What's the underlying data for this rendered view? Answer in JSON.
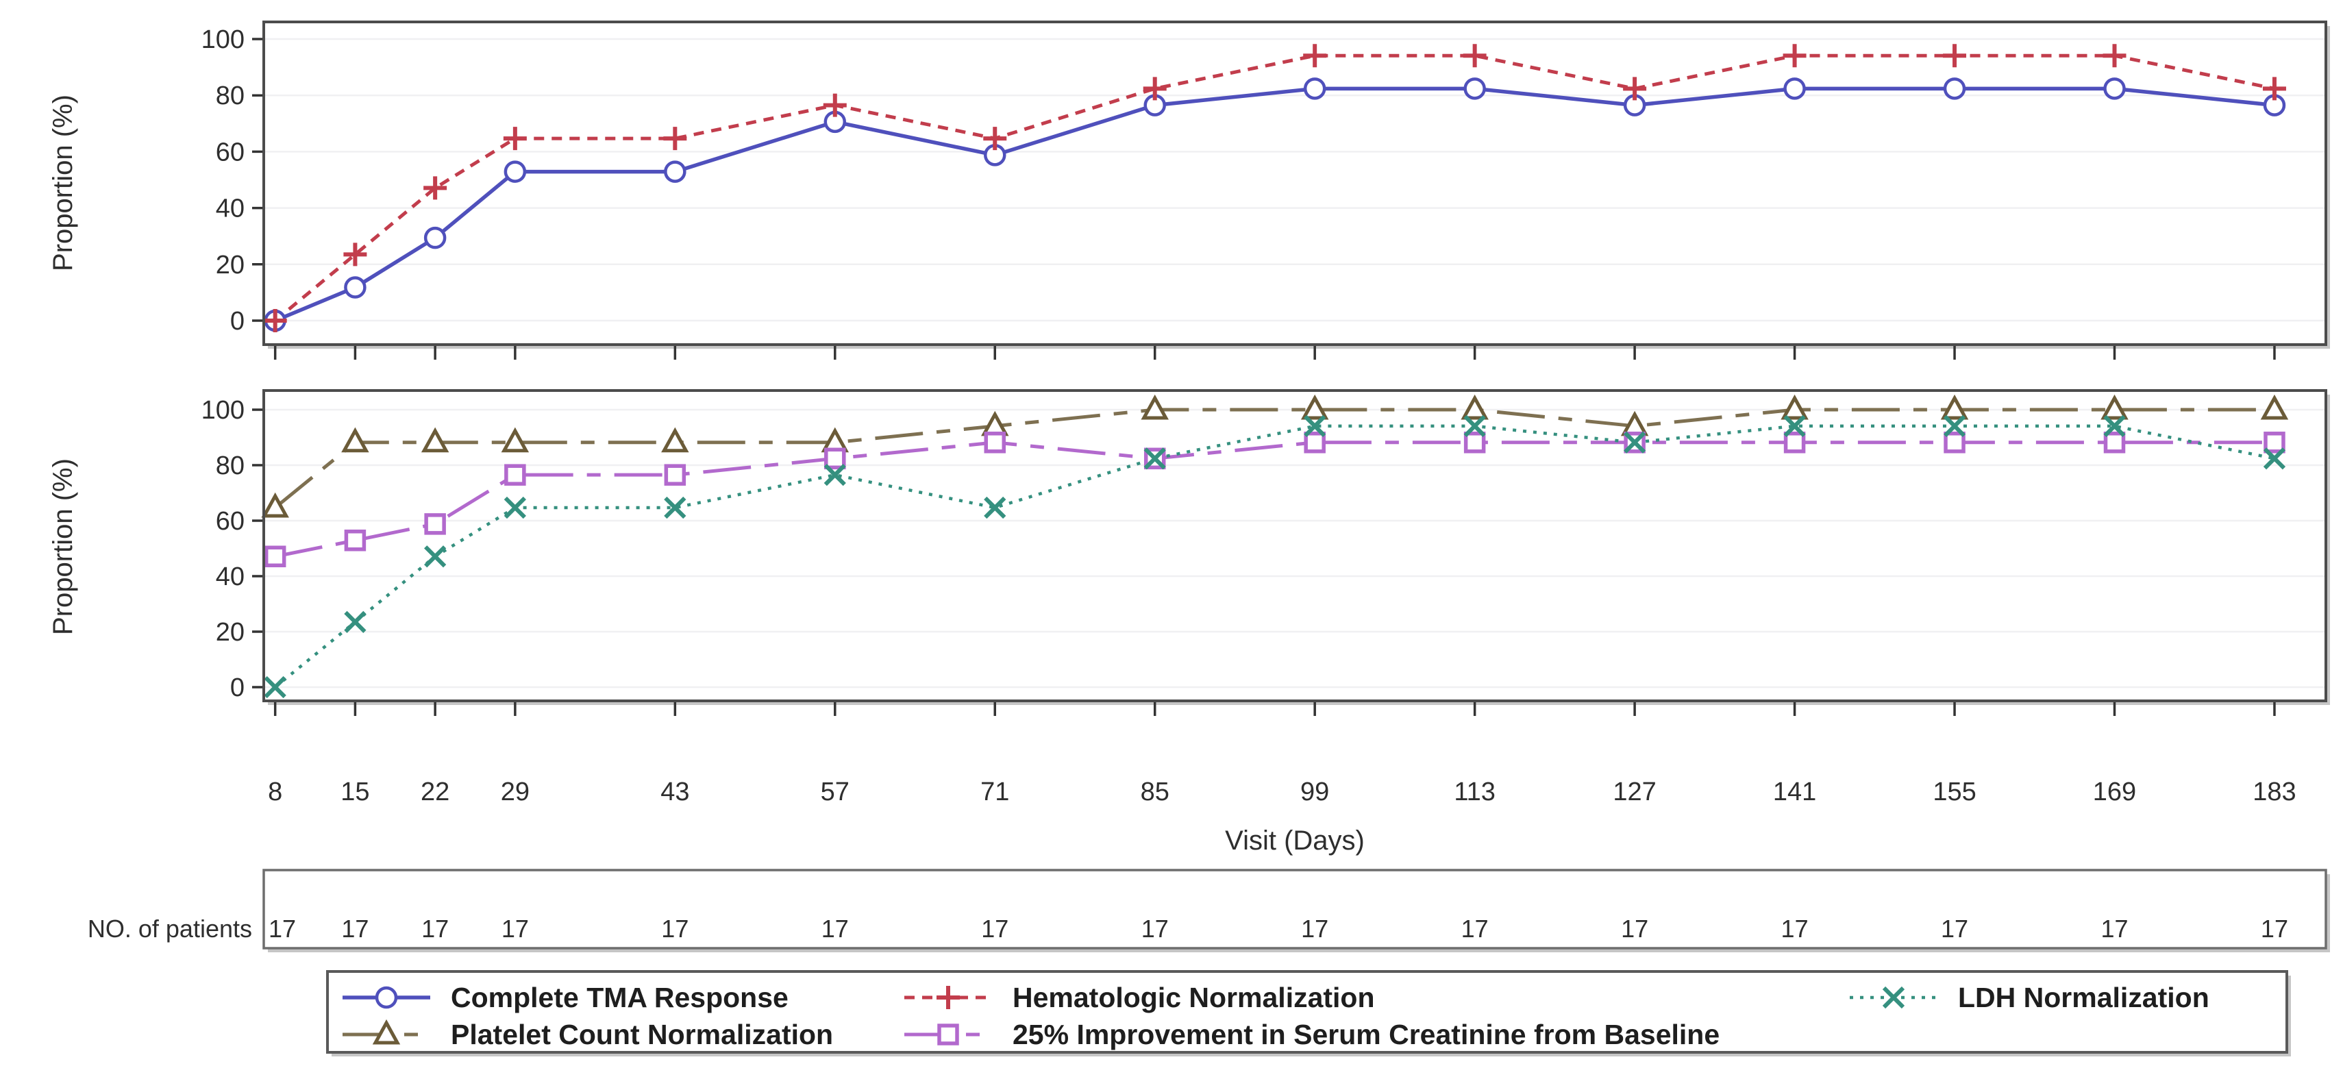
{
  "chart_data": {
    "type": "line",
    "xlabel": "Visit (Days)",
    "x": [
      8,
      15,
      22,
      29,
      43,
      57,
      71,
      85,
      99,
      113,
      127,
      141,
      155,
      169,
      183
    ],
    "xlim": [
      7,
      187.5
    ],
    "grid": true,
    "legend_position": "bottom",
    "panels": [
      {
        "ylabel": "Proportion (%)",
        "ylim": [
          0,
          100
        ],
        "yticks": [
          0,
          20,
          40,
          60,
          80,
          100
        ],
        "series": [
          {
            "name": "Complete TMA Response",
            "color": "#4f50bc",
            "line": "solid",
            "marker": "circle",
            "values": [
              0,
              11.8,
              29.4,
              52.9,
              52.9,
              70.6,
              58.8,
              76.5,
              82.4,
              82.4,
              76.5,
              82.4,
              82.4,
              82.4,
              76.5
            ]
          },
          {
            "name": "Hematologic Normalization",
            "color": "#c23d4c",
            "line": "dash",
            "marker": "plus",
            "values": [
              0,
              23.5,
              47.1,
              64.7,
              64.7,
              76.5,
              64.7,
              82.4,
              94.1,
              94.1,
              82.4,
              94.1,
              94.1,
              94.1,
              82.4
            ]
          }
        ]
      },
      {
        "ylabel": "Proportion (%)",
        "ylim": [
          0,
          100
        ],
        "yticks": [
          0,
          20,
          40,
          60,
          80,
          100
        ],
        "series": [
          {
            "name": "Platelet Count Normalization",
            "color": "#7e7051",
            "marker_color": "#6b5b38",
            "line": "dashdot",
            "marker": "triangle",
            "values": [
              64.7,
              88.2,
              88.2,
              88.2,
              88.2,
              88.2,
              94.1,
              100,
              100,
              100,
              94.1,
              100,
              100,
              100,
              100
            ]
          },
          {
            "name": "25% Improvement in Serum Creatinine from Baseline",
            "color": "#b269cd",
            "line": "dashdot",
            "marker": "square",
            "values": [
              47.1,
              52.9,
              58.8,
              76.5,
              76.5,
              82.4,
              88.2,
              82.4,
              88.2,
              88.2,
              88.2,
              88.2,
              88.2,
              88.2,
              88.2
            ]
          },
          {
            "name": "LDH Normalization",
            "color": "#35907f",
            "line": "dot",
            "marker": "x",
            "values": [
              0,
              23.5,
              47.1,
              64.7,
              64.7,
              76.5,
              64.7,
              82.4,
              94.1,
              94.1,
              88.2,
              94.1,
              94.1,
              94.1,
              82.4
            ]
          }
        ]
      }
    ],
    "patients_row": {
      "label": "NO. of patients",
      "values": [
        "17",
        "17",
        "17",
        "17",
        "17",
        "17",
        "17",
        "17",
        "17",
        "17",
        "17",
        "17",
        "17",
        "17",
        "17"
      ]
    },
    "style_colors": {
      "grid": "#f0f0f2",
      "panel_border": "#4c4c4c",
      "box_shadow": "#c6c6c6",
      "tick": "#333333",
      "patients_border": "#6e6e6e",
      "legend_border": "#5a5a5a"
    }
  }
}
